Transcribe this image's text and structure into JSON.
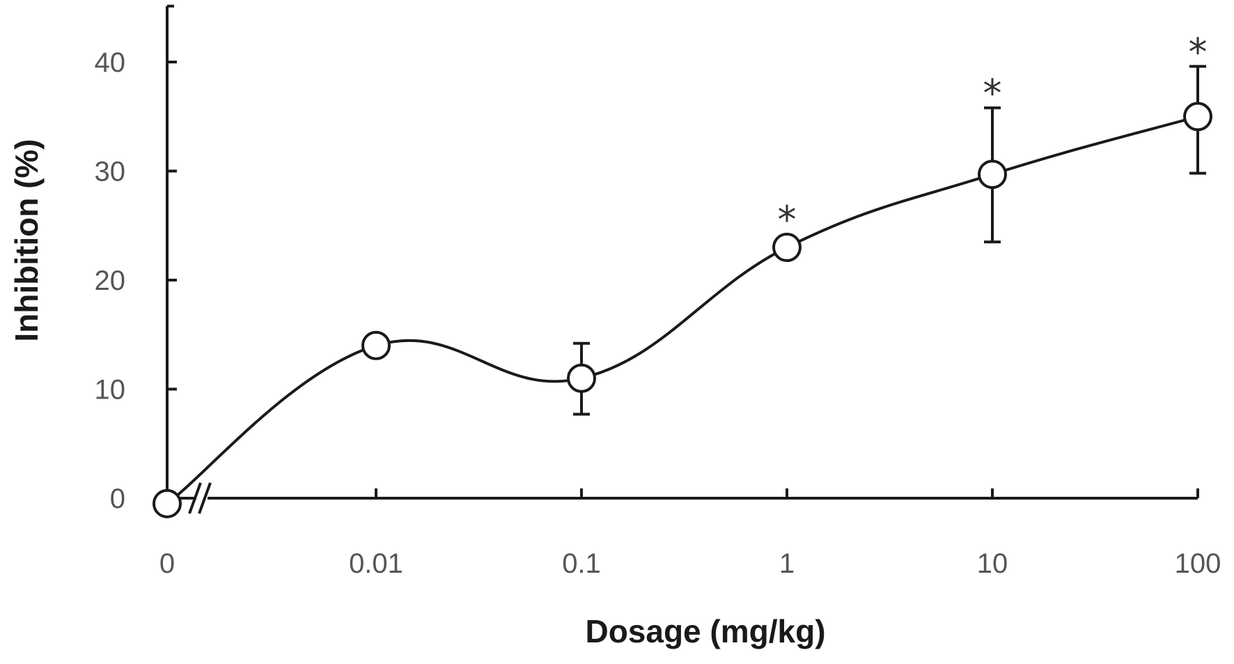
{
  "chart_data": {
    "type": "line",
    "xlabel": "Dosage (mg/kg)",
    "ylabel": "Inhibition (%)",
    "x_categories": [
      "0",
      "0.01",
      "0.1",
      "1",
      "10",
      "100"
    ],
    "y_ticks": [
      "0",
      "10",
      "20",
      "30",
      "40"
    ],
    "ylim": [
      0,
      45
    ],
    "axis_break": "between 0 and 0.01",
    "grid": false,
    "legend": "none",
    "series": [
      {
        "marker": "open-circle",
        "color": "#1a1a1a",
        "points": [
          {
            "x": "0",
            "y": -0.5,
            "err_low": null,
            "err_high": null,
            "significant": false
          },
          {
            "x": "0.01",
            "y": 14,
            "err_low": null,
            "err_high": null,
            "significant": false
          },
          {
            "x": "0.1",
            "y": 11,
            "err_low": 7.7,
            "err_high": 14.2,
            "significant": false
          },
          {
            "x": "1",
            "y": 23,
            "err_low": null,
            "err_high": null,
            "significant": true
          },
          {
            "x": "10",
            "y": 29.7,
            "err_low": 23.5,
            "err_high": 35.8,
            "significant": true
          },
          {
            "x": "100",
            "y": 35,
            "err_low": 29.8,
            "err_high": 39.6,
            "significant": true
          }
        ]
      }
    ],
    "significance_marker": "*"
  }
}
